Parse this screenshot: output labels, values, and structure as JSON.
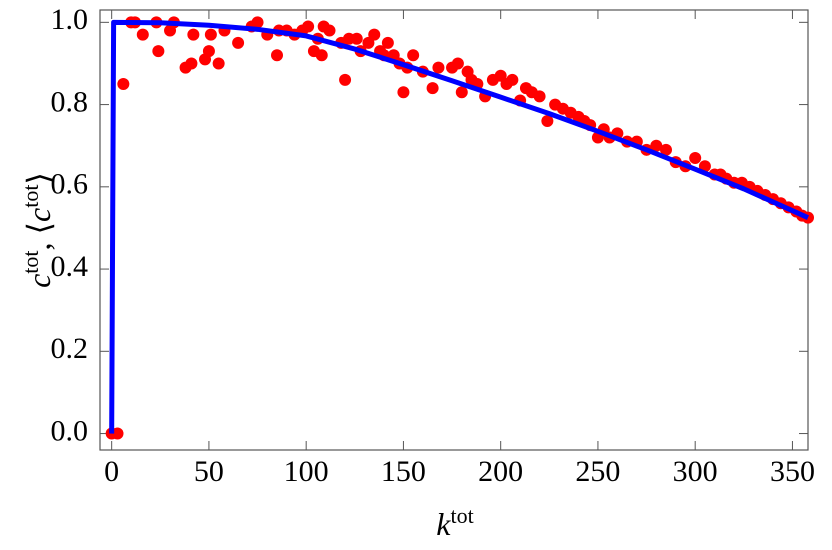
{
  "chart_data": {
    "type": "scatter",
    "xlabel": [
      {
        "text": "k",
        "italic": true
      },
      {
        "text": "tot",
        "sup": true
      }
    ],
    "ylabel": [
      {
        "text": "c",
        "italic": true
      },
      {
        "text": "tot",
        "sup": true
      },
      {
        "text": ", ⟨"
      },
      {
        "text": "c",
        "italic": true
      },
      {
        "text": "tot",
        "sup": true
      },
      {
        "text": "⟩"
      }
    ],
    "xlim": [
      -6,
      358
    ],
    "ylim": [
      -0.04,
      1.03
    ],
    "xticks": [
      0,
      50,
      100,
      150,
      200,
      250,
      300,
      350
    ],
    "yticks": [
      {
        "value": 0,
        "label": "0.0"
      },
      0.2,
      0.4,
      0.6,
      0.8,
      {
        "value": 1,
        "label": "1.0"
      }
    ],
    "series": [
      {
        "type": "scatter",
        "color": "#ff0000",
        "x": [
          0,
          3,
          6,
          10,
          12,
          16,
          23,
          24,
          30,
          32,
          38,
          41,
          42,
          48,
          50,
          51,
          55,
          58,
          65,
          72,
          75,
          80,
          85,
          86,
          90,
          94,
          98,
          101,
          104,
          106,
          108,
          109,
          112,
          118,
          120,
          122,
          126,
          128,
          132,
          135,
          138,
          140,
          142,
          145,
          148,
          150,
          152,
          155,
          160,
          165,
          168,
          175,
          178,
          180,
          183,
          185,
          188,
          192,
          196,
          200,
          203,
          206,
          210,
          213,
          216,
          220,
          224,
          228,
          232,
          236,
          240,
          243,
          246,
          250,
          253,
          256,
          260,
          265,
          270,
          275,
          280,
          285,
          290,
          295,
          300,
          305,
          310,
          313,
          316,
          320,
          324,
          328,
          332,
          336,
          340,
          344,
          348,
          352,
          355,
          358
        ],
        "values": [
          0,
          0,
          0.85,
          1,
          1,
          0.97,
          1,
          0.93,
          0.98,
          1,
          0.89,
          0.9,
          0.97,
          0.91,
          0.93,
          0.97,
          0.9,
          0.98,
          0.95,
          0.99,
          1,
          0.97,
          0.92,
          0.98,
          0.98,
          0.97,
          0.98,
          0.99,
          0.93,
          0.96,
          0.92,
          0.99,
          0.98,
          0.95,
          0.86,
          0.96,
          0.96,
          0.93,
          0.95,
          0.97,
          0.93,
          0.92,
          0.95,
          0.92,
          0.9,
          0.83,
          0.89,
          0.92,
          0.88,
          0.84,
          0.89,
          0.89,
          0.9,
          0.83,
          0.88,
          0.86,
          0.85,
          0.82,
          0.86,
          0.87,
          0.85,
          0.86,
          0.81,
          0.84,
          0.83,
          0.82,
          0.76,
          0.8,
          0.79,
          0.78,
          0.77,
          0.76,
          0.75,
          0.72,
          0.74,
          0.72,
          0.73,
          0.71,
          0.71,
          0.69,
          0.7,
          0.69,
          0.66,
          0.65,
          0.67,
          0.65,
          0.63,
          0.63,
          0.62,
          0.61,
          0.61,
          0.6,
          0.59,
          0.58,
          0.57,
          0.56,
          0.55,
          0.54,
          0.53,
          0.525
        ]
      },
      {
        "type": "line",
        "color": "#0000ff",
        "x": [
          0,
          1,
          25,
          50,
          75,
          100,
          125,
          150,
          175,
          200,
          225,
          250,
          275,
          300,
          325,
          358
        ],
        "values": [
          0,
          1,
          0.999,
          0.993,
          0.983,
          0.967,
          0.935,
          0.897,
          0.858,
          0.818,
          0.778,
          0.735,
          0.69,
          0.643,
          0.595,
          0.525
        ]
      }
    ]
  }
}
